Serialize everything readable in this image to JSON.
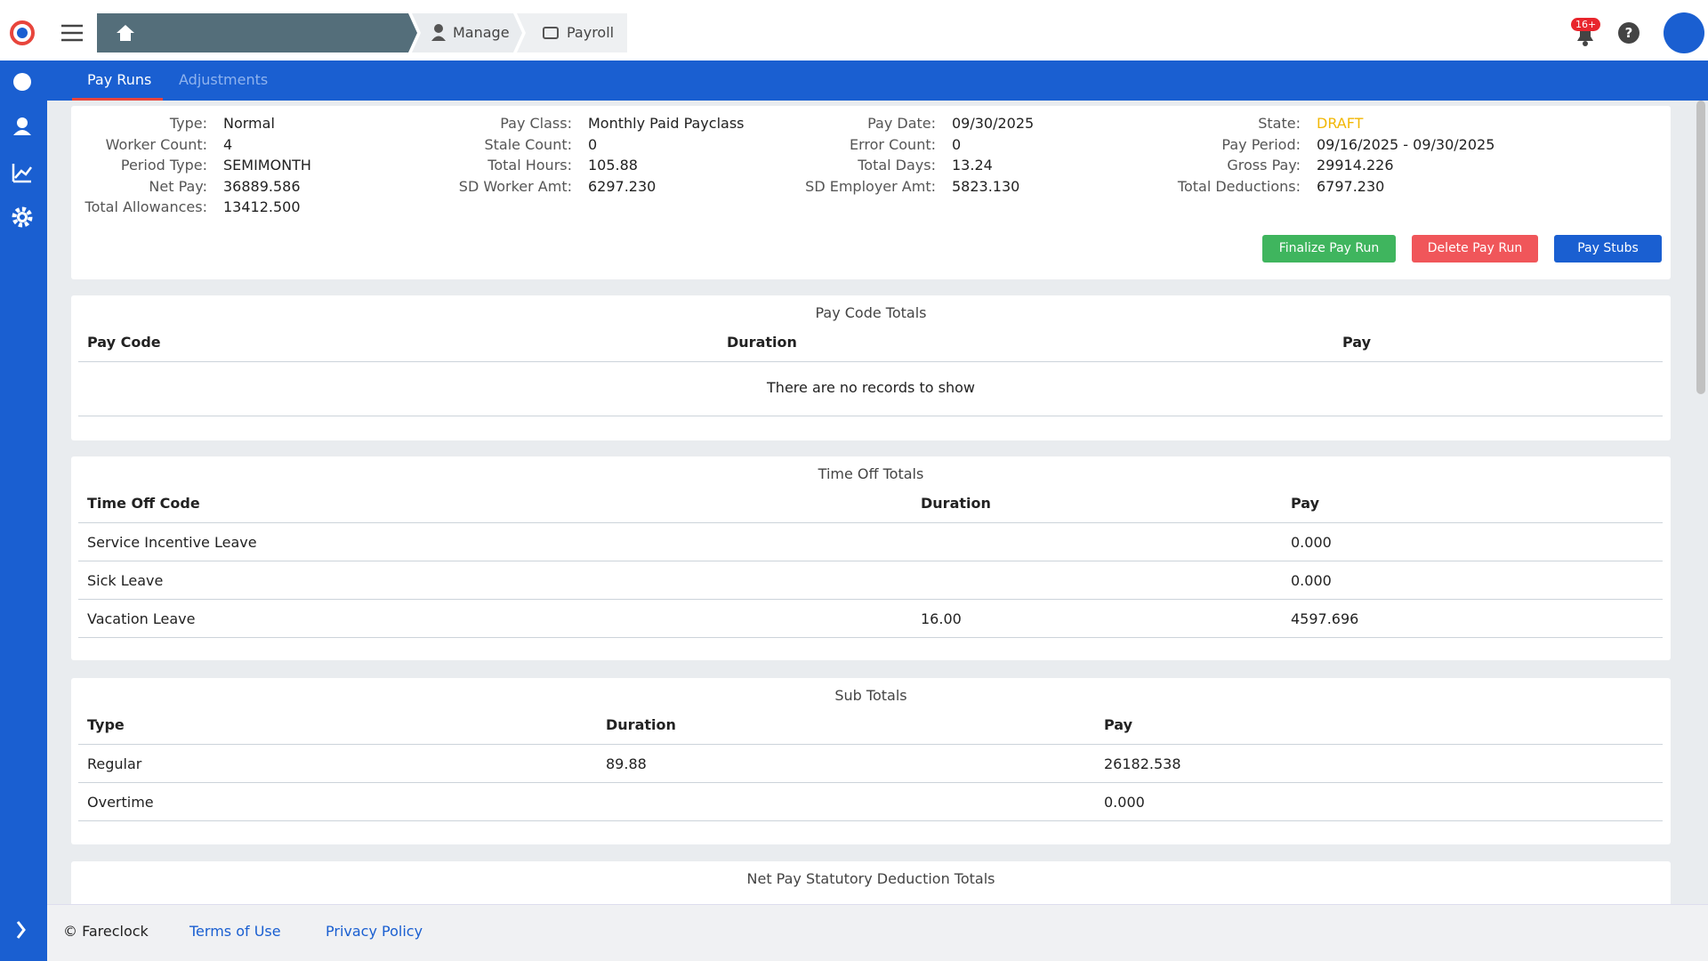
{
  "header": {
    "breadcrumb": [
      "Manage",
      "Payroll"
    ],
    "notification_badge": "16+"
  },
  "tabs": [
    "Pay Runs",
    "Adjustments"
  ],
  "summary": {
    "columns": [
      [
        {
          "label": "Type:",
          "value": "Normal"
        },
        {
          "label": "Worker Count:",
          "value": "4"
        },
        {
          "label": "Period Type:",
          "value": "SEMIMONTH"
        },
        {
          "label": "Net Pay:",
          "value": "36889.586"
        },
        {
          "label": "Total Allowances:",
          "value": "13412.500"
        }
      ],
      [
        {
          "label": "Pay Class:",
          "value": "Monthly Paid Payclass"
        },
        {
          "label": "Stale Count:",
          "value": "0"
        },
        {
          "label": "Total Hours:",
          "value": "105.88"
        },
        {
          "label": "SD Worker Amt:",
          "value": "6297.230"
        }
      ],
      [
        {
          "label": "Pay Date:",
          "value": "09/30/2025"
        },
        {
          "label": "Error Count:",
          "value": "0"
        },
        {
          "label": "Total Days:",
          "value": "13.24"
        },
        {
          "label": "SD Employer Amt:",
          "value": "5823.130"
        }
      ],
      [
        {
          "label": "State:",
          "value": "DRAFT"
        },
        {
          "label": "Pay Period:",
          "value": "09/16/2025 - 09/30/2025"
        },
        {
          "label": "Gross Pay:",
          "value": "29914.226"
        },
        {
          "label": "Total Deductions:",
          "value": "6797.230"
        }
      ]
    ]
  },
  "actions": [
    "Finalize Pay Run",
    "Delete Pay Run",
    "Pay Stubs"
  ],
  "tables": [
    {
      "title": "Pay Code Totals",
      "columns": [
        "Pay Code",
        "Duration",
        "Pay"
      ],
      "empty_message": "There are no records to show"
    },
    {
      "title": "Time Off Totals",
      "columns": [
        "Time Off Code",
        "Duration",
        "Pay"
      ],
      "rows": [
        [
          "Service Incentive Leave",
          null,
          "0.000"
        ],
        [
          "Sick Leave",
          null,
          "0.000"
        ],
        [
          "Vacation Leave",
          "16.00",
          "4597.696"
        ]
      ]
    },
    {
      "title": "Sub Totals",
      "columns": [
        "Type",
        "Duration",
        "Pay"
      ],
      "rows": [
        [
          "Regular",
          "89.88",
          "26182.538"
        ],
        [
          "Overtime",
          null,
          "0.000"
        ]
      ]
    },
    {
      "title": "Net Pay Statutory Deduction Totals"
    }
  ],
  "footer": {
    "copyright": "© Fareclock",
    "links": [
      "Terms of Use",
      "Privacy Policy"
    ]
  }
}
